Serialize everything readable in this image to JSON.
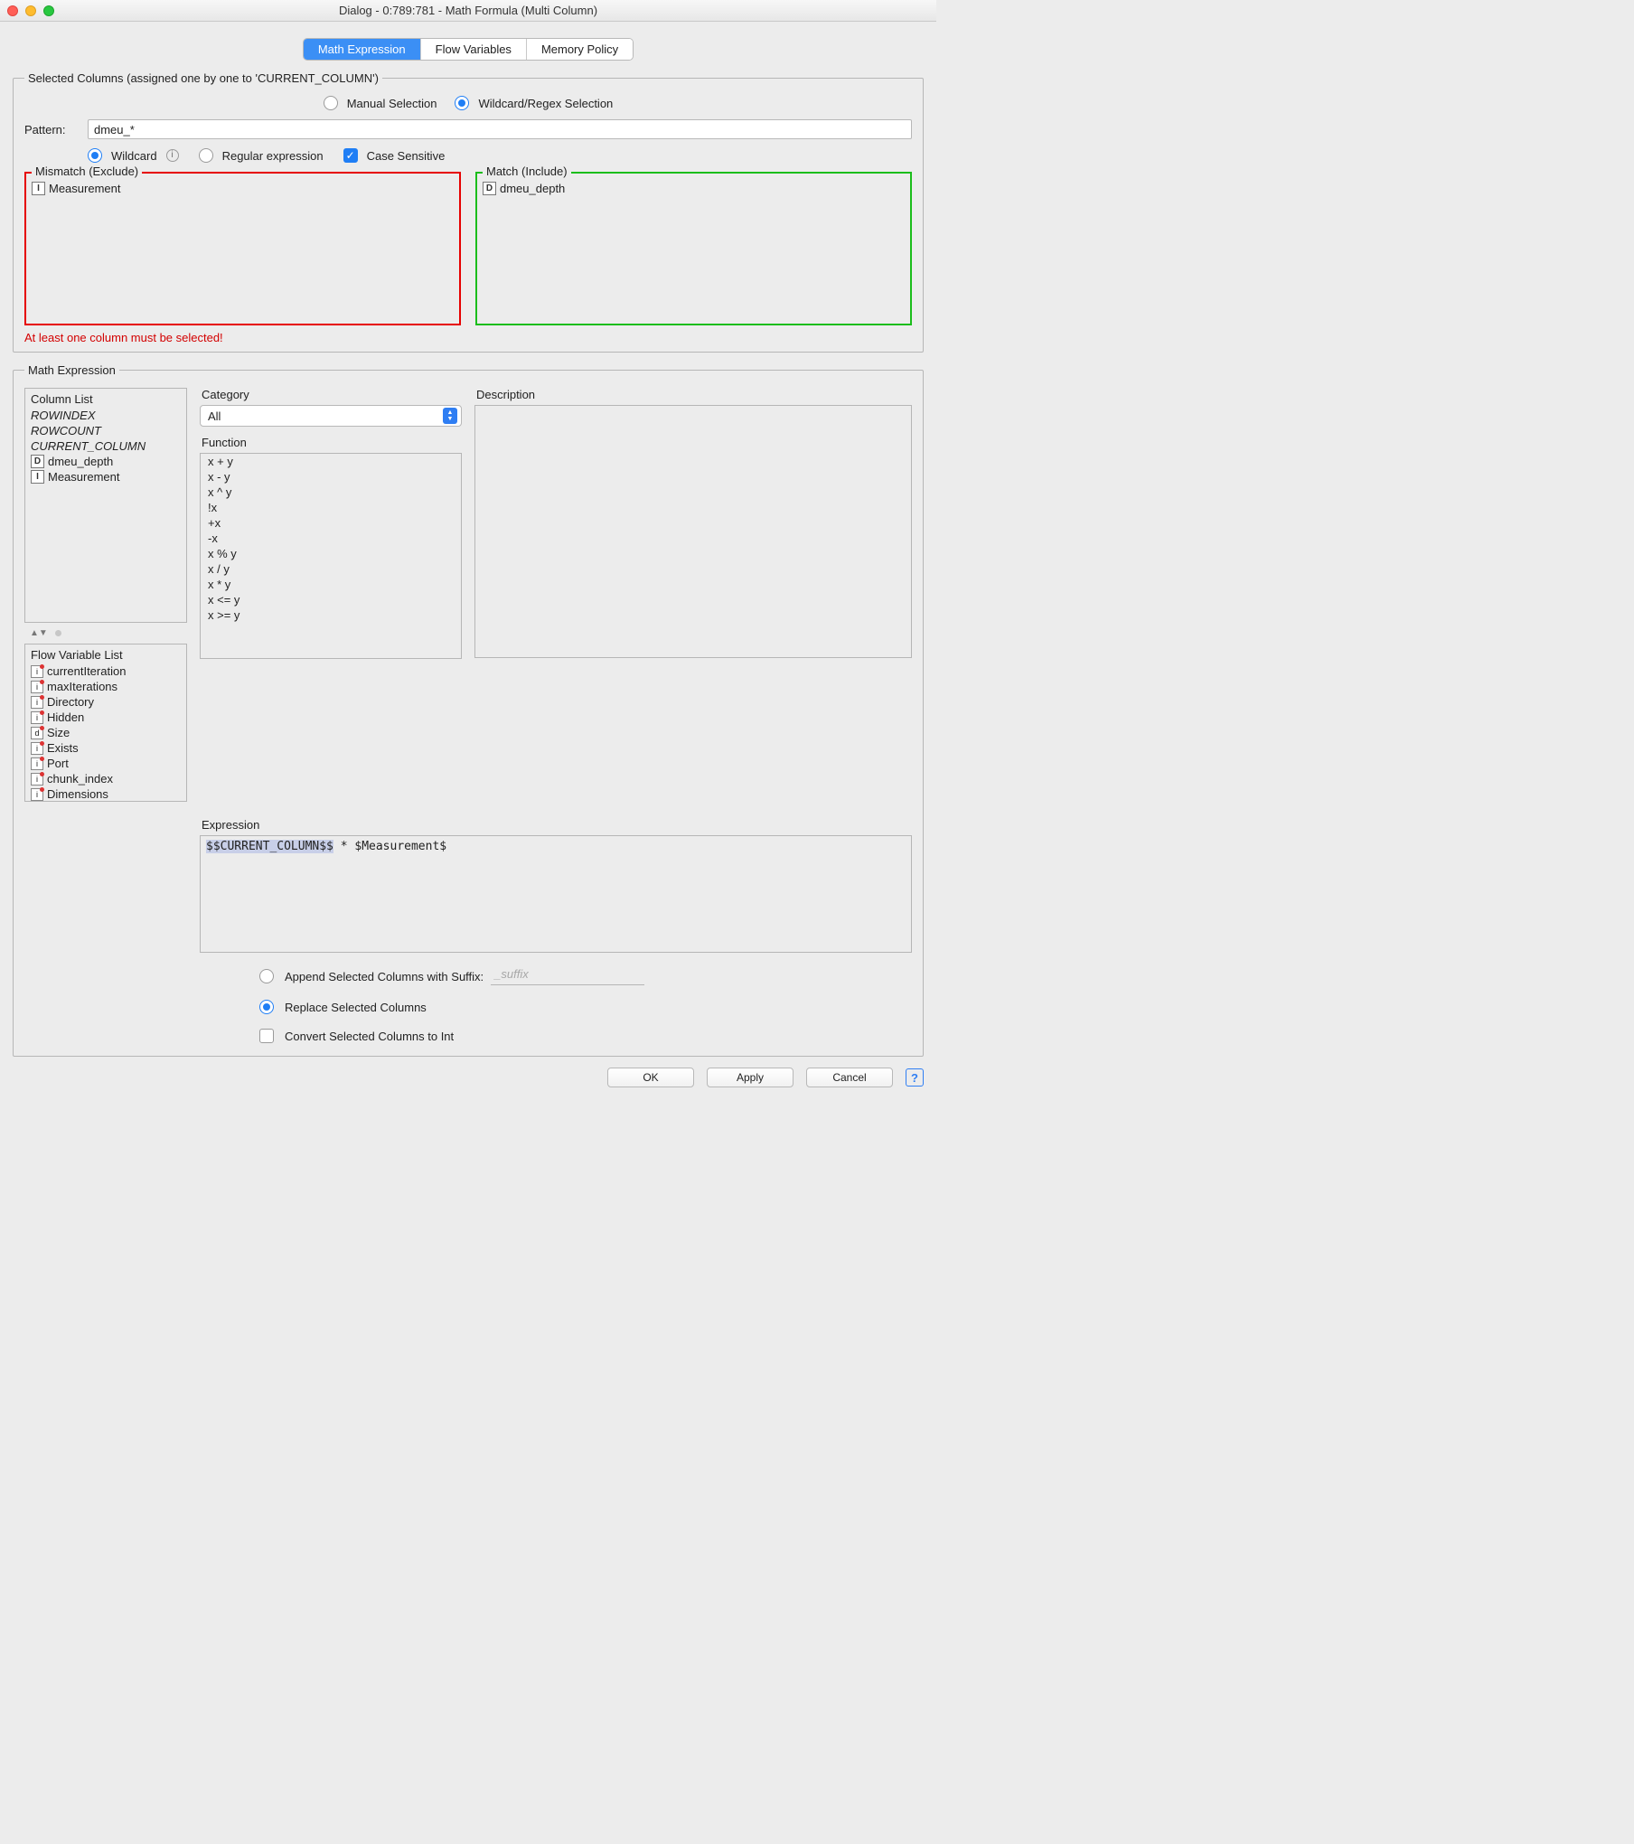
{
  "window": {
    "title": "Dialog - 0:789:781 - Math Formula (Multi Column)"
  },
  "tabs": {
    "mathExpression": "Math Expression",
    "flowVariables": "Flow Variables",
    "memoryPolicy": "Memory Policy"
  },
  "selectedColumns": {
    "legend": "Selected Columns (assigned one by one to 'CURRENT_COLUMN')",
    "manualSelection": "Manual Selection",
    "wildcardSelection": "Wildcard/Regex Selection",
    "patternLabel": "Pattern:",
    "patternValue": "dmeu_*",
    "wildcardLabel": "Wildcard",
    "regexLabel": "Regular expression",
    "caseSensitiveLabel": "Case Sensitive",
    "mismatch": {
      "legend": "Mismatch (Exclude)",
      "items": [
        {
          "badge": "I",
          "name": "Measurement"
        }
      ]
    },
    "match": {
      "legend": "Match (Include)",
      "items": [
        {
          "badge": "D",
          "name": "dmeu_depth"
        }
      ]
    },
    "warning": "At least one column must be selected!"
  },
  "mathExpression": {
    "legend": "Math Expression",
    "columnList": {
      "header": "Column List",
      "specials": [
        "ROWINDEX",
        "ROWCOUNT",
        "CURRENT_COLUMN"
      ],
      "columns": [
        {
          "badge": "D",
          "name": "dmeu_depth"
        },
        {
          "badge": "I",
          "name": "Measurement"
        }
      ]
    },
    "flowVarList": {
      "header": "Flow Variable List",
      "items": [
        {
          "badge": "i",
          "name": "currentIteration"
        },
        {
          "badge": "i",
          "name": "maxIterations"
        },
        {
          "badge": "i",
          "name": "Directory"
        },
        {
          "badge": "i",
          "name": "Hidden"
        },
        {
          "badge": "d",
          "name": "Size"
        },
        {
          "badge": "i",
          "name": "Exists"
        },
        {
          "badge": "i",
          "name": "Port"
        },
        {
          "badge": "i",
          "name": "chunk_index"
        },
        {
          "badge": "i",
          "name": "Dimensions"
        }
      ]
    },
    "categoryLabel": "Category",
    "categoryValue": "All",
    "functionLabel": "Function",
    "functions": [
      "x + y",
      "x - y",
      "x ^ y",
      "!x",
      "+x",
      "-x",
      "x % y",
      "x / y",
      "x * y",
      "x <= y",
      "x >= y"
    ],
    "descriptionLabel": "Description",
    "expressionLabel": "Expression",
    "expressionHighlighted": "$$CURRENT_COLUMN$$",
    "expressionRest": " * $Measurement$"
  },
  "options": {
    "appendSuffixLabel": "Append Selected Columns with Suffix:",
    "appendSuffixValue": "_suffix",
    "replaceLabel": "Replace Selected Columns",
    "convertIntLabel": "Convert Selected Columns to Int"
  },
  "buttons": {
    "ok": "OK",
    "apply": "Apply",
    "cancel": "Cancel"
  }
}
